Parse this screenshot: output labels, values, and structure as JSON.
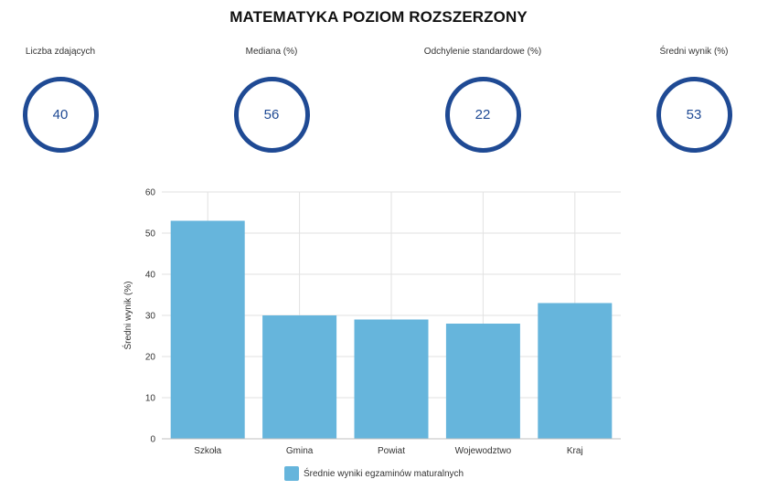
{
  "page_title": "MATEMATYKA POZIOM ROZSZERZONY",
  "stats": [
    {
      "label": "Liczba zdających",
      "value": "40"
    },
    {
      "label": "Mediana (%)",
      "value": "56"
    },
    {
      "label": "Odchylenie standardowe (%)",
      "value": "22"
    },
    {
      "label": "Średni wynik (%)",
      "value": "53"
    }
  ],
  "colors": {
    "circle": "#1f4a94",
    "bar": "#66b5dc",
    "grid": "#e2e2e2"
  },
  "chart_data": {
    "type": "bar",
    "categories": [
      "Szkoła",
      "Gmina",
      "Powiat",
      "Wojewodztwo",
      "Kraj"
    ],
    "series": [
      {
        "name": "Średnie wyniki egzaminów maturalnych",
        "values": [
          53,
          30,
          29,
          28,
          33
        ]
      }
    ],
    "ylabel": "Średni wynik (%)",
    "xlabel": "",
    "ylim": [
      0,
      60
    ],
    "yticks": [
      0,
      10,
      20,
      30,
      40,
      50,
      60
    ],
    "grid": true,
    "legend": "bottom"
  }
}
